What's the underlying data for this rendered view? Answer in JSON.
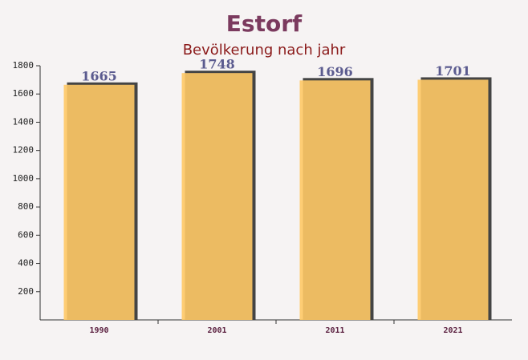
{
  "chart_data": {
    "type": "bar",
    "title": "Estorf",
    "subtitle": "Bevölkerung nach jahr",
    "categories": [
      "1990",
      "2001",
      "2011",
      "2021"
    ],
    "values": [
      1665,
      1748,
      1696,
      1701
    ],
    "color": "#ffc966",
    "ylim": [
      0,
      1800
    ],
    "yticks": [
      200,
      400,
      600,
      800,
      1000,
      1200,
      1400,
      1600,
      1800
    ]
  }
}
